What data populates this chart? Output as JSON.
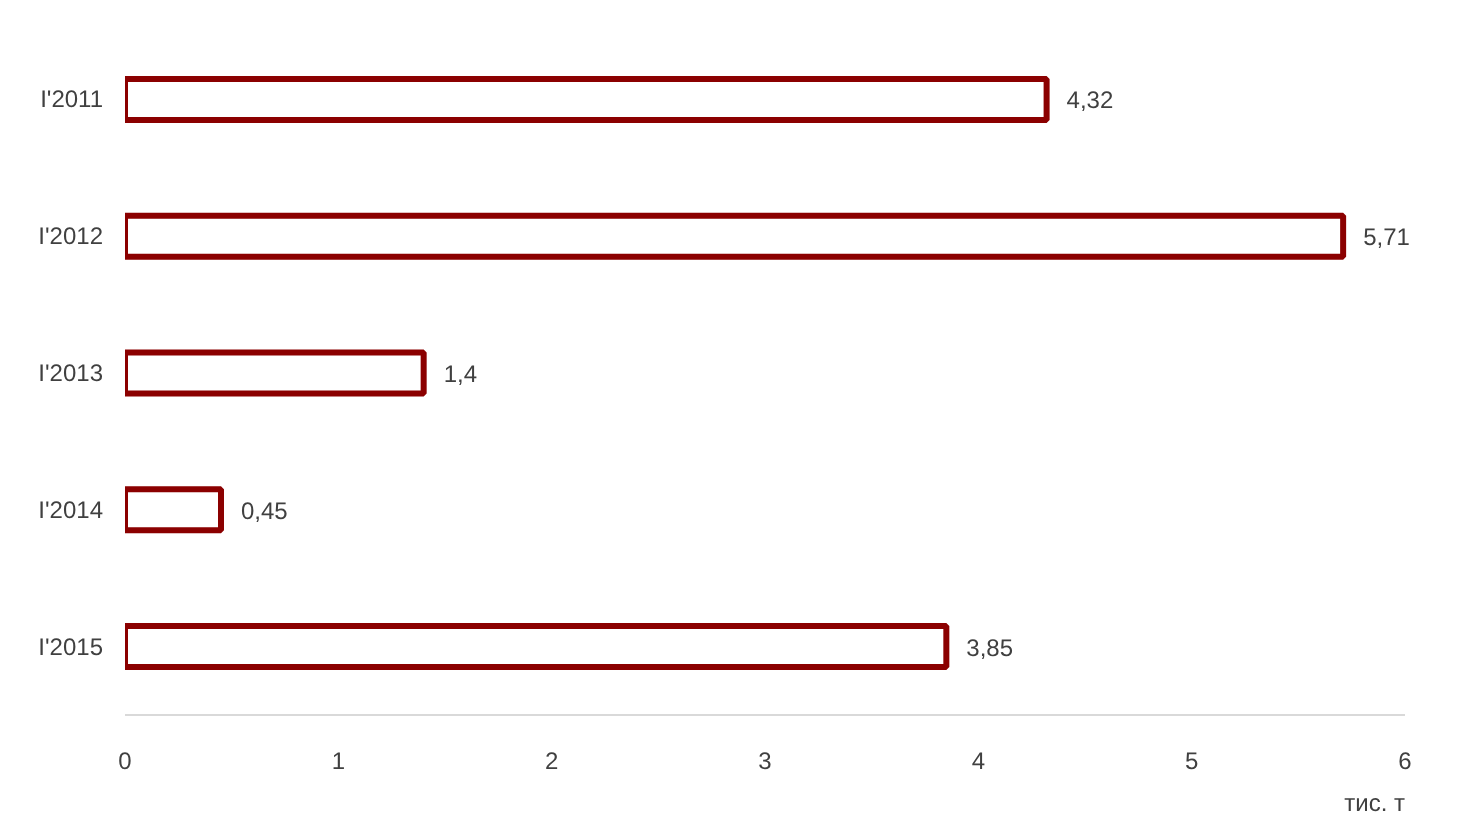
{
  "chart_data": {
    "type": "bar",
    "orientation": "horizontal",
    "categories": [
      "I'2011",
      "I'2012",
      "I'2013",
      "I'2014",
      "I'2015"
    ],
    "values": [
      4.32,
      5.71,
      1.4,
      0.45,
      3.85
    ],
    "value_labels": [
      "4,32",
      "5,71",
      "1,4",
      "0,45",
      "3,85"
    ],
    "color": "#8b0000",
    "xlim": [
      0,
      6
    ],
    "xticks": [
      0,
      1,
      2,
      3,
      4,
      5,
      6
    ],
    "xlabel": "тис. т",
    "grid": false
  }
}
